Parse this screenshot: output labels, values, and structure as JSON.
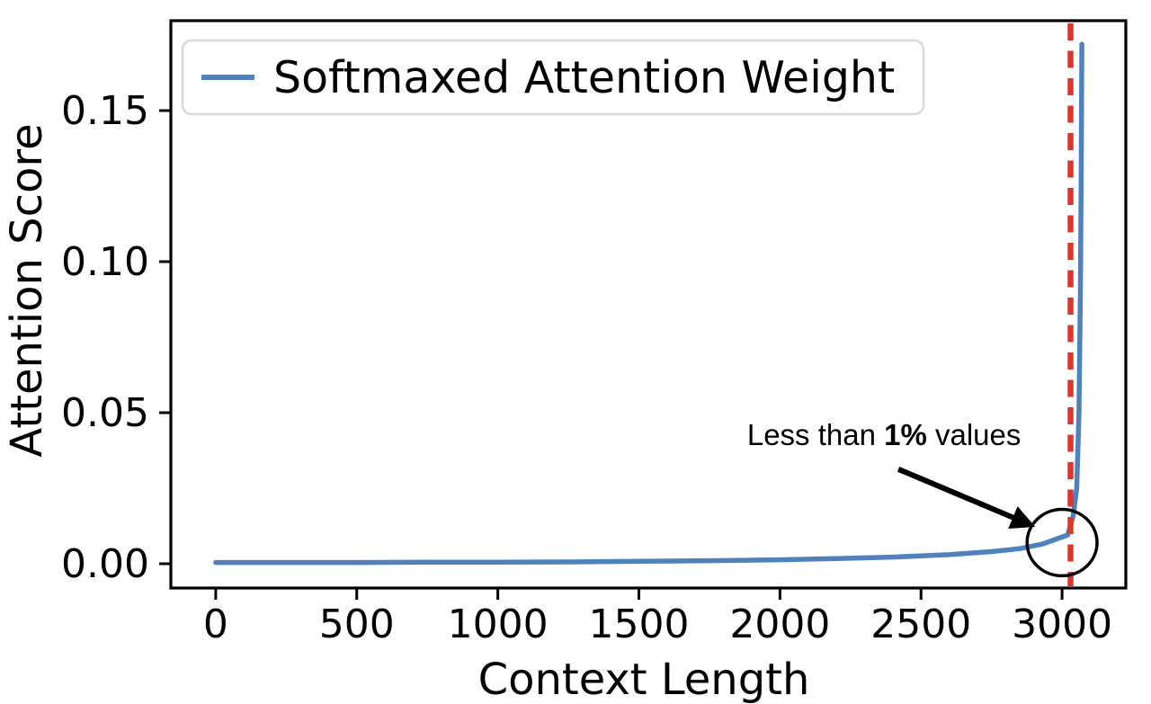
{
  "figure": {
    "background": "#ffffff",
    "text_color": "#000000",
    "axis_color": "#000000"
  },
  "chart_data": {
    "type": "line",
    "title": "",
    "xlabel": "Context Length",
    "ylabel": "Attention Score",
    "xlim": [
      -159,
      3226
    ],
    "ylim": [
      -0.00804,
      0.17976
    ],
    "xticks": [
      0,
      500,
      1000,
      1500,
      2000,
      2500,
      3000
    ],
    "yticks": [
      0,
      0.05,
      0.1,
      0.15
    ],
    "ytick_labels": [
      "0.00",
      "0.05",
      "0.10",
      "0.15"
    ],
    "grid": false,
    "legend": {
      "position": "upper-left",
      "entries": [
        {
          "label": "Softmaxed Attention Weight",
          "color": "#4f81bd"
        }
      ]
    },
    "series": [
      {
        "name": "Softmaxed Attention Weight",
        "color": "#4f81bd",
        "line_width": 5.5,
        "x": [
          0,
          250,
          500,
          750,
          1000,
          1250,
          1500,
          1750,
          2000,
          2200,
          2400,
          2600,
          2750,
          2850,
          2930,
          2990,
          3020,
          3040,
          3052,
          3060,
          3065,
          3068,
          3070
        ],
        "y": [
          0.0004,
          0.0004,
          0.0004,
          0.0005,
          0.0005,
          0.0006,
          0.0008,
          0.001,
          0.0013,
          0.0017,
          0.0022,
          0.003,
          0.004,
          0.005,
          0.0065,
          0.0085,
          0.0095,
          0.016,
          0.025,
          0.05,
          0.09,
          0.13,
          0.172
        ]
      }
    ],
    "vline": {
      "x": 3030,
      "color": "#e1352b",
      "style": "dashed",
      "line_width": 6.5
    },
    "annotation": {
      "prefix": "Less than ",
      "bold": "1%",
      "suffix": " values",
      "color": "#000000",
      "text_x": 2369,
      "text_y": 0.0393,
      "arrow_from": [
        2420,
        0.0313
      ],
      "arrow_to": [
        2905,
        0.0122
      ],
      "circle_x": 3000,
      "circle_y": 0.007,
      "circle_rx_data": 124,
      "circle_ry_data": 0.011
    }
  }
}
